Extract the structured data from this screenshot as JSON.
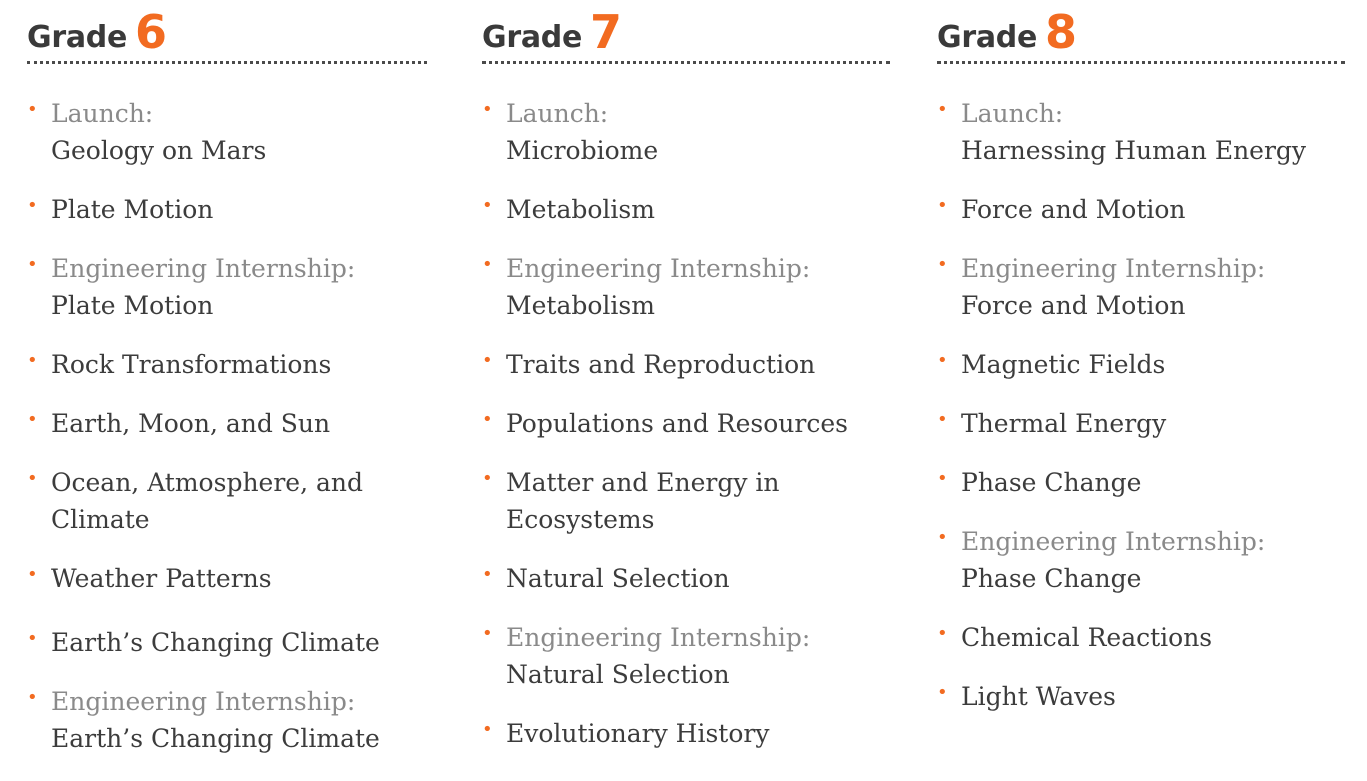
{
  "columns": [
    {
      "grade_word": "Grade",
      "grade_number": "6",
      "items": [
        {
          "prefix": "Launch:",
          "title": "Geology on Mars"
        },
        {
          "prefix": "",
          "title": "Plate Motion"
        },
        {
          "prefix": "Engineering Internship:",
          "title": "Plate Motion"
        },
        {
          "prefix": "",
          "title": "Rock Transformations"
        },
        {
          "prefix": "",
          "title": "Earth, Moon, and Sun"
        },
        {
          "prefix": "",
          "title": "Ocean, Atmosphere, and Climate"
        },
        {
          "prefix": "",
          "title": "Weather Patterns"
        },
        {
          "prefix": "",
          "title": "Earth’s Changing Climate"
        },
        {
          "prefix": "Engineering Internship:",
          "title": "Earth’s Changing Climate"
        }
      ]
    },
    {
      "grade_word": "Grade",
      "grade_number": "7",
      "items": [
        {
          "prefix": "Launch:",
          "title": "Microbiome"
        },
        {
          "prefix": "",
          "title": "Metabolism"
        },
        {
          "prefix": "Engineering Internship:",
          "title": "Metabolism"
        },
        {
          "prefix": "",
          "title": "Traits and Reproduction"
        },
        {
          "prefix": "",
          "title": "Populations and Resources"
        },
        {
          "prefix": "",
          "title": "Matter and Energy in Ecosystems"
        },
        {
          "prefix": "",
          "title": "Natural Selection"
        },
        {
          "prefix": "Engineering Internship:",
          "title": "Natural Selection"
        },
        {
          "prefix": "",
          "title": "Evolutionary History"
        }
      ]
    },
    {
      "grade_word": "Grade",
      "grade_number": "8",
      "items": [
        {
          "prefix": "Launch:",
          "title": "Harnessing Human Energy"
        },
        {
          "prefix": "",
          "title": "Force and Motion"
        },
        {
          "prefix": "Engineering Internship:",
          "title": "Force and Motion"
        },
        {
          "prefix": "",
          "title": "Magnetic Fields"
        },
        {
          "prefix": "",
          "title": "Thermal Energy"
        },
        {
          "prefix": "",
          "title": "Phase Change"
        },
        {
          "prefix": "Engineering Internship:",
          "title": "Phase Change"
        },
        {
          "prefix": "",
          "title": "Chemical Reactions"
        },
        {
          "prefix": "",
          "title": "Light Waves"
        }
      ]
    }
  ],
  "colors": {
    "accent": "#f26b21",
    "heading": "#3a3a3a",
    "text": "#3c3c3c",
    "prefix": "#8a8a8a"
  }
}
